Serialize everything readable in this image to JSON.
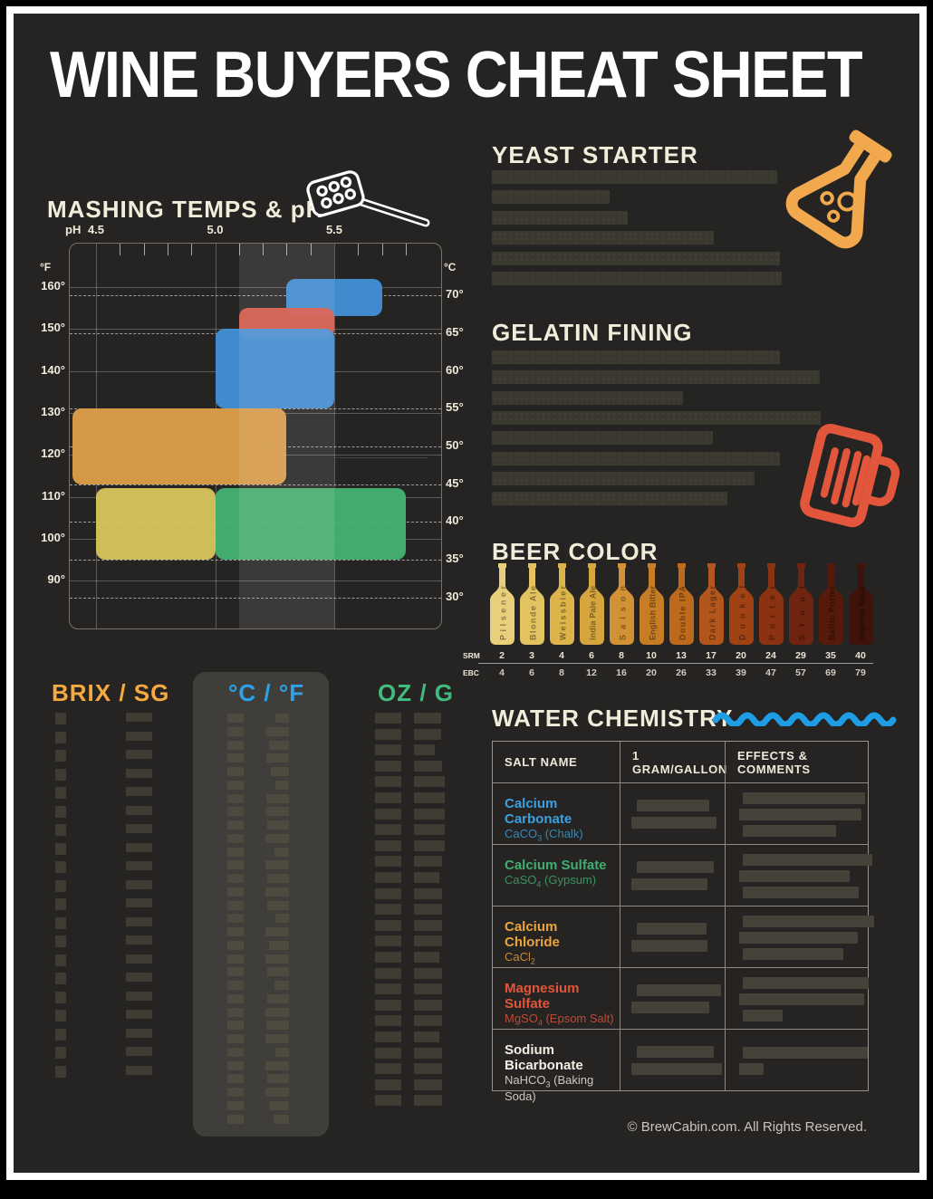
{
  "poster": {
    "title": "WINE BUYERS CHEAT SHEET",
    "footer": "© BrewCabin.com. All Rights Reserved."
  },
  "mashing": {
    "title": "MASHING TEMPS & pH",
    "axis": {
      "x_label": "pH",
      "x_ticks": [
        "4.5",
        "5.0",
        "5.5"
      ],
      "left_label": "°F",
      "right_label": "°C",
      "f_ticks": [
        160,
        150,
        140,
        130,
        120,
        110,
        100,
        90
      ],
      "c_ticks": [
        70,
        65,
        60,
        55,
        50,
        45,
        40,
        35,
        30
      ]
    },
    "chart_data": {
      "type": "range-box",
      "x_unit": "pH",
      "x_range": [
        4.4,
        5.9
      ],
      "y_unit_left": "°F",
      "y_unit_right": "°C",
      "highlight_band_ph": [
        5.1,
        5.5
      ],
      "boxes": [
        {
          "color": "#4190d8",
          "ph": [
            5.3,
            5.7
          ],
          "temp_f": [
            153,
            162
          ]
        },
        {
          "color": "#d95848",
          "ph": [
            5.1,
            5.5
          ],
          "temp_f": [
            148,
            155
          ]
        },
        {
          "color": "#4190d8",
          "ph": [
            5.0,
            5.5
          ],
          "temp_f": [
            131,
            150
          ]
        },
        {
          "color": "#dd9f4a",
          "ph": [
            4.4,
            5.3
          ],
          "temp_f": [
            113,
            131
          ]
        },
        {
          "color": "#d8c65e",
          "ph": [
            4.5,
            5.0
          ],
          "temp_f": [
            95,
            112
          ]
        },
        {
          "color": "#45b372",
          "ph": [
            5.0,
            5.8
          ],
          "temp_f": [
            95,
            112
          ]
        }
      ]
    }
  },
  "yeast": {
    "title": "YEAST STARTER",
    "bars": [
      315,
      130,
      150,
      245,
      318,
      320
    ]
  },
  "gelatin": {
    "title": "GELATIN FINING",
    "bars": [
      318,
      362,
      211,
      363,
      244,
      318,
      290,
      260
    ]
  },
  "beer_color": {
    "title": "BEER COLOR",
    "srm_label": "SRM",
    "ebc_label": "EBC",
    "chart_data": {
      "type": "scale",
      "srm": [
        2,
        3,
        4,
        6,
        8,
        10,
        13,
        17,
        20,
        24,
        29,
        35,
        40
      ],
      "ebc": [
        4,
        6,
        8,
        12,
        16,
        20,
        26,
        33,
        39,
        47,
        57,
        69,
        79
      ],
      "styles": [
        "Pilsener",
        "Blonde Ale",
        "Weissbier",
        "India Pale Ale",
        "Saison",
        "English Bitter",
        "Double IPA",
        "Dark Lager",
        "Dunkel",
        "Porter",
        "Stout",
        "Baltic Porter",
        "Imperial Stout"
      ],
      "colors": [
        "#e7cf7c",
        "#e2c35f",
        "#dcb44a",
        "#d7a53e",
        "#d19134",
        "#c67d26",
        "#bd6a1d",
        "#b3561b",
        "#a04214",
        "#8a3212",
        "#6f2410",
        "#551a0c",
        "#40130a"
      ]
    }
  },
  "converters": {
    "brix": {
      "title": "BRIX / SG",
      "color": "#f5a93f",
      "rows": 20,
      "a_width": 12,
      "b_widths": [
        29,
        29,
        29,
        29,
        29,
        29,
        29,
        29,
        29,
        29,
        29,
        29,
        29,
        29,
        29,
        29,
        29,
        29,
        29,
        29
      ]
    },
    "cf": {
      "title": "°C / °F",
      "color": "#2ba3ea",
      "rows": 31,
      "a_width": 18,
      "b_widths": [
        15,
        26,
        22,
        25,
        20,
        15,
        25,
        26,
        24,
        26,
        16,
        26,
        24,
        26,
        24,
        15,
        26,
        22,
        26,
        24,
        16,
        24,
        26,
        25,
        26,
        15,
        26,
        24,
        26,
        22,
        17
      ]
    },
    "oz": {
      "title": "OZ / G",
      "color": "#3fbd7d",
      "rows": 25,
      "a_width": 29,
      "b_widths": [
        30,
        30,
        23,
        31,
        34,
        34,
        34,
        34,
        34,
        31,
        28,
        31,
        31,
        31,
        31,
        28,
        31,
        31,
        31,
        31,
        28,
        31,
        31,
        31,
        31
      ]
    }
  },
  "water": {
    "title": "WATER CHEMISTRY",
    "table": {
      "headers": [
        "SALT NAME",
        "1 GRAM/GALLON",
        "EFFECTS & COMMENTS"
      ],
      "rows": [
        {
          "name": "Calcium Carbonate",
          "formula_pre": "CaCO",
          "formula_sub": "3",
          "formula_post": " (Chalk)",
          "color": "#3aa0e0",
          "dose_bars": [
            80,
            94
          ],
          "effect_bars": [
            135,
            135,
            103
          ]
        },
        {
          "name": "Calcium Sulfate",
          "formula_pre": "CaSO",
          "formula_sub": "4",
          "formula_post": " (Gypsum)",
          "color": "#41ae71",
          "dose_bars": [
            85,
            84
          ],
          "effect_bars": [
            143,
            122,
            128
          ]
        },
        {
          "name": "Calcium Chloride",
          "formula_pre": "CaCl",
          "formula_sub": "2",
          "formula_post": "",
          "color": "#eaa53e",
          "dose_bars": [
            77,
            84
          ],
          "effect_bars": [
            145,
            131,
            111
          ]
        },
        {
          "name": "Magnesium Sulfate",
          "formula_pre": "MgSO",
          "formula_sub": "4",
          "formula_post": " (Epsom Salt)",
          "color": "#e2553a",
          "dose_bars": [
            93,
            86
          ],
          "effect_bars": [
            139,
            138,
            44
          ]
        },
        {
          "name": "Sodium Bicarbonate",
          "formula_pre": "NaHCO",
          "formula_sub": "3",
          "formula_post": " (Baking Soda)",
          "color": "#f2efe4",
          "dose_bars": [
            85,
            100
          ],
          "effect_bars": [
            138,
            27
          ]
        }
      ]
    }
  }
}
